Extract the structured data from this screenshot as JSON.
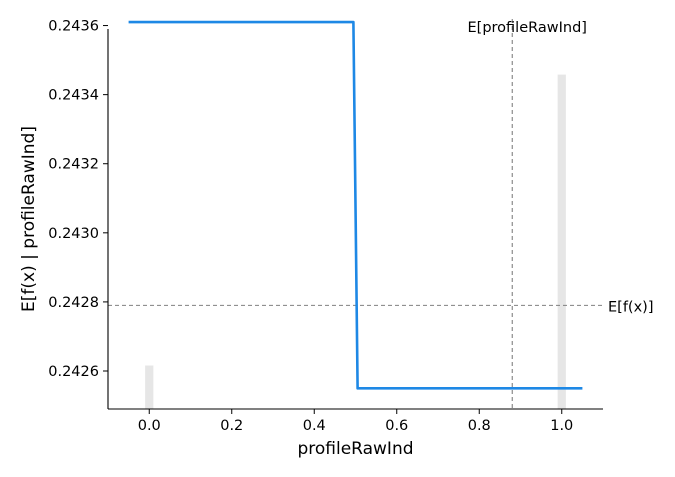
{
  "chart_data": {
    "type": "line",
    "title": "",
    "xlabel": "profileRawInd",
    "ylabel": "E[f(x) | profileRawInd]",
    "xlim": [
      -0.1,
      1.1
    ],
    "ylim": [
      0.24249,
      0.24359
    ],
    "xticks": [
      0.0,
      0.2,
      0.4,
      0.6,
      0.8,
      1.0
    ],
    "xtick_labels": [
      "0.0",
      "0.2",
      "0.4",
      "0.6",
      "0.8",
      "1.0"
    ],
    "yticks": [
      0.2426,
      0.2428,
      0.243,
      0.2432,
      0.2434,
      0.2436
    ],
    "ytick_labels": [
      "0.2426",
      "0.2428",
      "0.2430",
      "0.2432",
      "0.2434",
      "0.2436"
    ],
    "grid": false,
    "series": [
      {
        "x": [
          -0.05,
          0.495,
          0.505,
          1.05
        ],
        "y": [
          0.24361,
          0.24361,
          0.24255,
          0.24255
        ],
        "color": "#1e88e5"
      }
    ],
    "histogram": {
      "x": [
        0.0,
        1.0
      ],
      "relative_height": [
        0.13,
        1.0
      ],
      "bar_width": 0.02,
      "max_fraction_of_axis": 0.88,
      "color": "#e6e6e6"
    },
    "reference_lines": {
      "horizontal": {
        "y": 0.24279,
        "label": "E[f(x)]",
        "color": "#808080"
      },
      "vertical": {
        "x": 0.88,
        "label": "E[profileRawInd]",
        "color": "#808080"
      }
    }
  }
}
